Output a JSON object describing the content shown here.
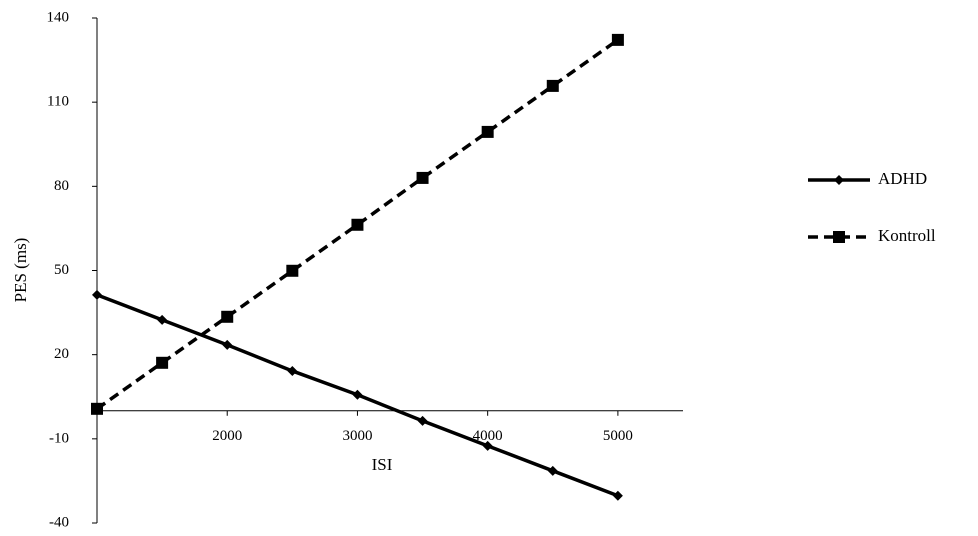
{
  "chart_data": {
    "type": "line",
    "x_label": "ISI",
    "y_label": "PES (ms)",
    "x": [
      1000,
      1500,
      2000,
      2500,
      3000,
      3500,
      4000,
      4500,
      5000
    ],
    "series": [
      {
        "name": "ADHD",
        "color": "#000000",
        "dash": "solid",
        "marker": "diamond",
        "values": [
          41.3,
          32.4,
          23.5,
          14.2,
          5.7,
          -3.6,
          -12.5,
          -21.4,
          -30.3
        ]
      },
      {
        "name": "Kontroll",
        "color": "#000000",
        "dash": "dashed",
        "marker": "square",
        "values": [
          0.7,
          17.1,
          33.5,
          49.9,
          66.3,
          83.0,
          99.4,
          115.8,
          132.2
        ]
      }
    ],
    "xlim": [
      1000,
      5500
    ],
    "xticks": [
      2000,
      3000,
      4000,
      5000
    ],
    "ylim": [
      -40,
      140
    ],
    "yticks": [
      -40,
      -10,
      20,
      50,
      80,
      110,
      140
    ],
    "grid": false,
    "legend": "right"
  }
}
